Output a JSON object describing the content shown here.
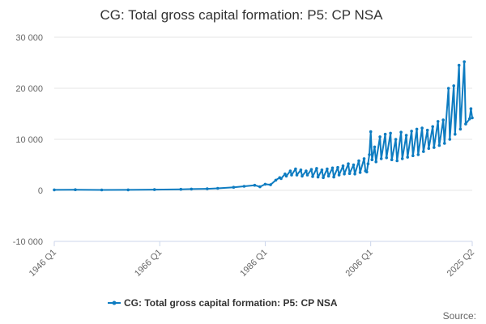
{
  "chart_data": {
    "type": "line",
    "title": "CG: Total gross capital formation: P5: CP NSA",
    "xlabel": "",
    "ylabel": "",
    "x_range": [
      "1946 Q1",
      "2025 Q2"
    ],
    "ylim": [
      -10000,
      30000
    ],
    "y_ticks": [
      -10000,
      0,
      10000,
      20000,
      30000
    ],
    "y_tick_labels": [
      "-10 000",
      "0",
      "10 000",
      "20 000",
      "30 000"
    ],
    "x_ticks": [
      "1946 Q1",
      "1966 Q1",
      "1986 Q1",
      "2006 Q1",
      "2025 Q2"
    ],
    "grid": true,
    "legend_position": "bottom",
    "series": [
      {
        "name": "CG: Total gross capital formation: P5: CP NSA",
        "color": "#0e7cc1",
        "x": [
          "1946 Q1",
          "1950 Q1",
          "1955 Q1",
          "1960 Q1",
          "1965 Q1",
          "1970 Q1",
          "1972 Q1",
          "1975 Q1",
          "1977 Q1",
          "1980 Q1",
          "1982 Q1",
          "1984 Q1",
          "1985 Q1",
          "1986 Q1",
          "1987 Q1",
          "1988 Q1",
          "1988 Q4",
          "1989 Q1",
          "1989 Q4",
          "1990 Q1",
          "1990 Q4",
          "1991 Q1",
          "1991 Q4",
          "1992 Q1",
          "1992 Q4",
          "1993 Q1",
          "1993 Q4",
          "1994 Q1",
          "1994 Q4",
          "1995 Q1",
          "1995 Q4",
          "1996 Q1",
          "1996 Q4",
          "1997 Q1",
          "1997 Q4",
          "1998 Q1",
          "1998 Q4",
          "1999 Q1",
          "1999 Q4",
          "2000 Q1",
          "2000 Q4",
          "2001 Q1",
          "2001 Q4",
          "2002 Q1",
          "2002 Q4",
          "2003 Q1",
          "2003 Q4",
          "2004 Q1",
          "2004 Q4",
          "2005 Q1",
          "2005 Q4",
          "2005 Q2",
          "2005 Q3",
          "2006 Q1",
          "2006 Q2",
          "2006 Q4",
          "2007 Q1",
          "2007 Q4",
          "2008 Q1",
          "2008 Q4",
          "2009 Q1",
          "2009 Q4",
          "2010 Q1",
          "2010 Q4",
          "2011 Q1",
          "2011 Q4",
          "2012 Q1",
          "2012 Q4",
          "2013 Q1",
          "2013 Q4",
          "2014 Q1",
          "2014 Q4",
          "2015 Q1",
          "2015 Q4",
          "2016 Q1",
          "2016 Q4",
          "2017 Q1",
          "2017 Q4",
          "2018 Q1",
          "2018 Q4",
          "2019 Q1",
          "2019 Q4",
          "2020 Q1",
          "2020 Q4",
          "2021 Q1",
          "2021 Q4",
          "2022 Q1",
          "2022 Q4",
          "2023 Q1",
          "2023 Q4",
          "2024 Q1",
          "2024 Q4",
          "2025 Q1",
          "2025 Q2"
        ],
        "values": [
          100,
          120,
          80,
          100,
          150,
          200,
          250,
          300,
          400,
          600,
          800,
          1000,
          700,
          1200,
          1100,
          2000,
          2500,
          2300,
          3200,
          2800,
          3800,
          3000,
          4200,
          3000,
          4000,
          2800,
          3800,
          3000,
          4100,
          2700,
          4300,
          2600,
          4000,
          2500,
          4200,
          2800,
          4400,
          2600,
          4500,
          3000,
          4800,
          3200,
          5200,
          3300,
          5000,
          3200,
          5800,
          3500,
          6200,
          3800,
          7000,
          3600,
          5200,
          11500,
          6000,
          8500,
          5600,
          10500,
          6200,
          11000,
          6400,
          11200,
          6000,
          10000,
          5800,
          11400,
          6200,
          10800,
          6500,
          11600,
          6800,
          12000,
          7000,
          12200,
          7600,
          11800,
          8200,
          12500,
          8400,
          13500,
          8800,
          13800,
          9200,
          20000,
          10000,
          20500,
          11000,
          24500,
          12000,
          25200,
          13000,
          14000,
          16000,
          14200
        ]
      }
    ],
    "source_label": "Source:"
  }
}
